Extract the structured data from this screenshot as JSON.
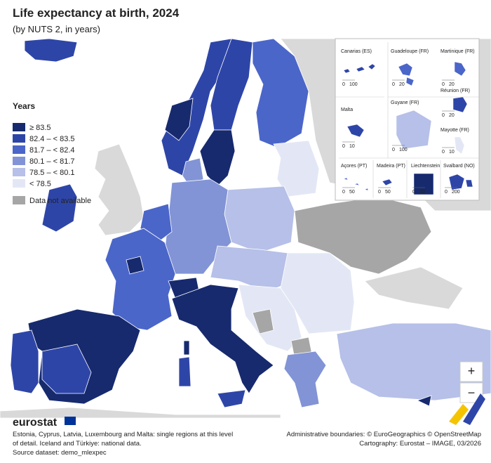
{
  "header": {
    "title": "Life expectancy at birth, 2024",
    "subtitle": "(by NUTS 2, in years)"
  },
  "legend": {
    "title": "Years",
    "items": [
      {
        "label": "≥ 83.5",
        "color": "#172a6e"
      },
      {
        "label": "82.4 – < 83.5",
        "color": "#2e45a8"
      },
      {
        "label": "81.7 – < 82.4",
        "color": "#4b66c9"
      },
      {
        "label": "80.1 – < 81.7",
        "color": "#8294d6"
      },
      {
        "label": "78.5 – < 80.1",
        "color": "#b6c0e8"
      },
      {
        "label": "< 78.5",
        "color": "#e3e7f5"
      },
      {
        "label": "Data not available",
        "color": "#a6a6a6"
      }
    ]
  },
  "insets": [
    {
      "label": "Canarias (ES)",
      "scale": [
        "0",
        "100"
      ]
    },
    {
      "label": "Guadeloupe (FR)",
      "scale": [
        "0",
        "20"
      ]
    },
    {
      "label": "Martinique (FR)",
      "scale": [
        "0",
        "20"
      ]
    },
    {
      "label": "Réunion (FR)",
      "scale": [
        "0",
        "20"
      ]
    },
    {
      "label": "Malta",
      "scale": [
        "0",
        "10"
      ]
    },
    {
      "label": "Guyane (FR)",
      "scale": [
        "0",
        "100"
      ]
    },
    {
      "label": "Mayotte (FR)",
      "scale": [
        "0",
        "10"
      ]
    },
    {
      "label": "Açores (PT)",
      "scale": [
        "0",
        "50"
      ]
    },
    {
      "label": "Madeira (PT)",
      "scale": [
        "0",
        "50"
      ]
    },
    {
      "label": "Liechtenstein",
      "scale": [
        "0",
        "10"
      ]
    },
    {
      "label": "Svalbard (NO)",
      "scale": [
        "0",
        "200"
      ]
    }
  ],
  "zoom": {
    "in": "+",
    "out": "−"
  },
  "footer": {
    "logo": "eurostat",
    "notes": [
      "Estonia, Cyprus, Latvia, Luxembourg and Malta: single regions at this level",
      "of detail. Iceland and Türkiye: national data.",
      "Source dataset: demo_mlexpec"
    ],
    "credits": [
      "Administrative boundaries: © EuroGeographics © OpenStreetMap",
      "Cartography: Eurostat – IMAGE, 03/2026"
    ]
  }
}
